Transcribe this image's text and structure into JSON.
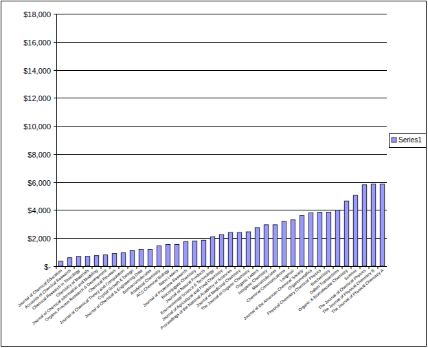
{
  "chart_data": {
    "type": "bar",
    "categories": [
      "Journal of Chemical Education",
      "Accounts of Chemical Research",
      "Chemical Research in Toxicology",
      "Chemistry of Materials",
      "Journal of Chemical Information and Modeling",
      "Organic Process Research & Development",
      "Chemical Reviews",
      "Journal of Chemical Theory and Computation",
      "Crystal Growth & Design",
      "Journal of Chemical & Engineering Data",
      "Biomacromolecules",
      "Analytical Chemistry",
      "ACS Chemical Biology",
      "Nano Letters",
      "Journal of Proteome Research",
      "Bioconjugate Chemistry",
      "Journal of Natural Products",
      "Environmental Science & Technology",
      "Journal of Agricultural and Food Chemistry",
      "Proceedings of the National Academy of Sciences",
      "Journal of Medicinal Chemistry",
      "The Journal of Organic Chemistry",
      "Organic Letters",
      "Inorganic Chemistry",
      "Macromolecules",
      "Chemical Communications",
      "Langmuir",
      "Journal of the American Chemical Society",
      "Organometallics",
      "Physical Chemistry Chemical Physics",
      "Biochemistry",
      "Dalton Transactions",
      "Organic & Biomolecular Chemistry",
      "Science",
      "The Journal of Chemical Physics",
      "The Journal of Physical Chemistry B",
      "The Journal of Physical Chemistry A"
    ],
    "series": [
      {
        "name": "Series1",
        "color": "#9999ff",
        "values": [
          350,
          600,
          700,
          700,
          750,
          800,
          900,
          950,
          1100,
          1200,
          1200,
          1450,
          1550,
          1550,
          1750,
          1800,
          1850,
          2100,
          2250,
          2400,
          2400,
          2450,
          2750,
          2950,
          2950,
          3200,
          3300,
          3600,
          3800,
          3850,
          3850,
          4000,
          4650,
          5050,
          5800,
          5850,
          5850
        ]
      }
    ],
    "ylim": [
      0,
      18000
    ],
    "yticks": [
      {
        "value": 0,
        "label": "$-"
      },
      {
        "value": 2000,
        "label": "$2,000"
      },
      {
        "value": 4000,
        "label": "$4,000"
      },
      {
        "value": 6000,
        "label": "$6,000"
      },
      {
        "value": 8000,
        "label": "$8,000"
      },
      {
        "value": 10000,
        "label": "$10,000"
      },
      {
        "value": 12000,
        "label": "$12,000"
      },
      {
        "value": 14000,
        "label": "$14,000"
      },
      {
        "value": 16000,
        "label": "$16,000"
      },
      {
        "value": 18000,
        "label": "$18,000"
      }
    ],
    "grid": true,
    "legend": "right"
  }
}
